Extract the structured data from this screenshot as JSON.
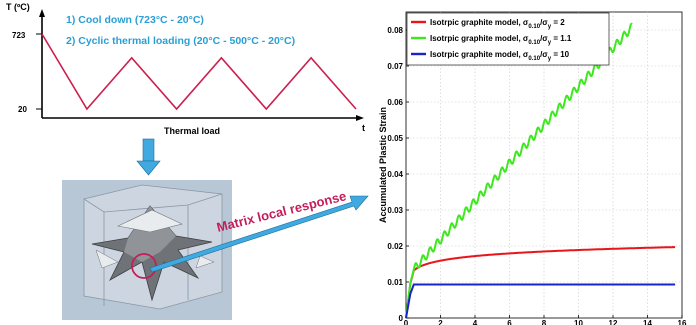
{
  "thermal": {
    "step1": "1) Cool down (723°C - 20°C)",
    "step2": "2) Cyclic thermal loading (20°C - 500°C - 20°C)",
    "y_axis_label": "T (ºC)",
    "x_axis_label": "Thermal load",
    "x_axis_end": "t",
    "tick_high": "723",
    "tick_low": "20",
    "profile_T": [
      723,
      20,
      500,
      20,
      500,
      20,
      500,
      20
    ],
    "line_color": "#cc1f4d"
  },
  "callout": {
    "text": "Matrix local response",
    "color": "#c41e5a"
  },
  "colors": {
    "arrow": "#3fa9e0",
    "title": "#2a9fd6"
  },
  "chart_data": {
    "type": "line",
    "xlabel": "",
    "ylabel": "Accumulated Plastic Strain",
    "xlim": [
      0,
      16
    ],
    "ylim": [
      0,
      0.085
    ],
    "xticks": [
      "0",
      "2",
      "4",
      "6",
      "8",
      "10",
      "12",
      "14",
      "16"
    ],
    "yticks": [
      "0",
      "0.01",
      "0.02",
      "0.03",
      "0.04",
      "0.05",
      "0.06",
      "0.07",
      "0.08"
    ],
    "grid": true,
    "legend_position": "top-left",
    "series": [
      {
        "name_main": "Isotrpic graphite model, σ",
        "name_sub1": "0.10",
        "name_mid": "/σ",
        "name_sub2": "y",
        "name_tail": " = 2",
        "color": "#e8161b",
        "kind": "log",
        "x_end": 15.6,
        "y0": 0.0132,
        "y_end": 0.0197
      },
      {
        "name_main": "Isotrpic graphite model, σ",
        "name_sub1": "0.10",
        "name_mid": "/σ",
        "name_sub2": "y",
        "name_tail": " = 1.1",
        "color": "#3ee81f",
        "kind": "ratchet",
        "x_end": 13.1,
        "y0": 0.0135,
        "y_end": 0.0808
      },
      {
        "name_main": "Isotrpic graphite model, σ",
        "name_sub1": "0.10",
        "name_mid": "/σ",
        "name_sub2": "y",
        "name_tail": " = 10",
        "color": "#1426c8",
        "kind": "flat",
        "x_end": 15.6,
        "y0": 0.0093,
        "y_end": 0.0093
      }
    ]
  }
}
